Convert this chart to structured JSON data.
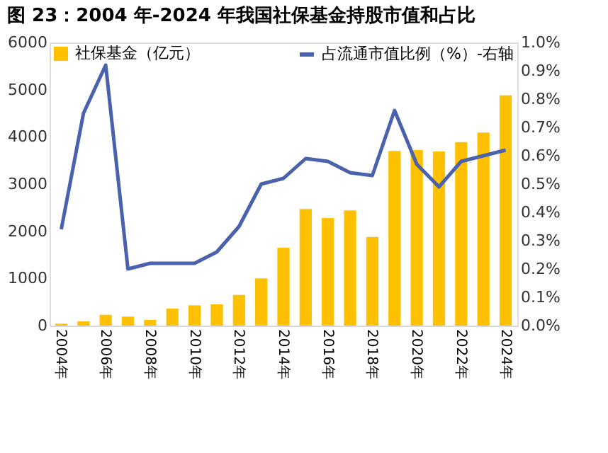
{
  "chart_data": {
    "type": "bar",
    "title": "图 23：2004 年-2024 年我国社保基金持股市值和占比",
    "categories": [
      "2004年",
      null,
      "2006年",
      null,
      "2008年",
      null,
      "2010年",
      null,
      "2012年",
      null,
      "2014年",
      null,
      "2016年",
      null,
      "2018年",
      null,
      "2020年",
      null,
      "2022年",
      null,
      "2024年"
    ],
    "series": [
      {
        "name": "社保基金（亿元）",
        "color": "#ffc000",
        "values": [
          40,
          90,
          230,
          190,
          120,
          360,
          430,
          450,
          650,
          1000,
          1650,
          2470,
          2280,
          2440,
          1880,
          3700,
          3720,
          3690,
          3890,
          4090,
          4880
        ]
      },
      {
        "name": "占流通市值比例（%）-右轴",
        "type": "line",
        "axis": "y2",
        "color": "#4a62ad",
        "values": [
          0.34,
          0.75,
          0.92,
          0.2,
          0.22,
          0.22,
          0.22,
          0.26,
          0.35,
          0.5,
          0.52,
          0.59,
          0.58,
          0.54,
          0.53,
          0.76,
          0.57,
          0.49,
          0.58,
          0.6,
          0.62
        ]
      }
    ],
    "ylim": [
      0,
      6000
    ],
    "yticks": [
      0,
      1000,
      2000,
      3000,
      4000,
      5000,
      6000
    ],
    "y2lim": [
      0,
      1.0
    ],
    "y2ticks": [
      {
        "value": 0,
        "label": "0.0%"
      },
      {
        "value": 0.1,
        "label": "0.1%"
      },
      {
        "value": 0.2,
        "label": "0.2%"
      },
      {
        "value": 0.3,
        "label": "0.3%"
      },
      {
        "value": 0.4,
        "label": "0.4%"
      },
      {
        "value": 0.5,
        "label": "0.5%"
      },
      {
        "value": 0.6,
        "label": "0.6%"
      },
      {
        "value": 0.7,
        "label": "0.7%"
      },
      {
        "value": 0.8,
        "label": "0.8%"
      },
      {
        "value": 0.9,
        "label": "0.9%"
      },
      {
        "value": 1.0,
        "label": "1.0%"
      }
    ],
    "grid": false,
    "legend": "top"
  }
}
